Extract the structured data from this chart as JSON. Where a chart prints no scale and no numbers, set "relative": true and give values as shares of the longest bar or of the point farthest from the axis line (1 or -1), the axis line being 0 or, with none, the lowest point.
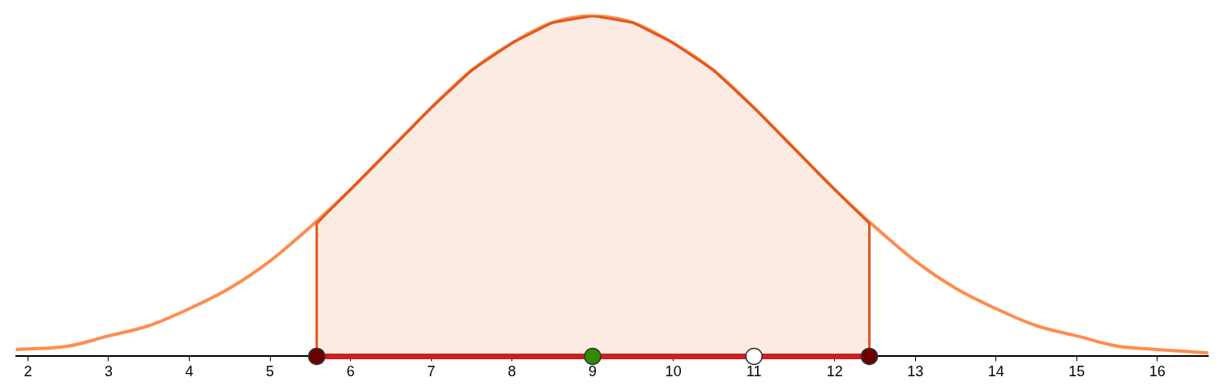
{
  "chart_data": {
    "type": "line",
    "relative": true,
    "xlim": [
      1.85,
      16.63
    ],
    "xticks": [
      2,
      3,
      4,
      5,
      6,
      7,
      8,
      9,
      10,
      11,
      12,
      13,
      14,
      15,
      16
    ],
    "grid": false,
    "legend": false,
    "series": [
      {
        "type": "line",
        "color": "#ff8c4f",
        "x": [
          1.85,
          2.5,
          3,
          3.5,
          4,
          4.5,
          5,
          5.5,
          6,
          6.5,
          7,
          7.5,
          8,
          8.5,
          9,
          9.5,
          10,
          10.5,
          11,
          11.5,
          12,
          12.5,
          13,
          13.5,
          14,
          14.5,
          15,
          15.5,
          16,
          16.63
        ],
        "values": [
          0.02,
          0.03,
          0.06,
          0.09,
          0.14,
          0.2,
          0.28,
          0.38,
          0.49,
          0.61,
          0.73,
          0.84,
          0.92,
          0.98,
          1,
          0.98,
          0.92,
          0.84,
          0.73,
          0.61,
          0.49,
          0.38,
          0.28,
          0.2,
          0.14,
          0.09,
          0.06,
          0.03,
          0.02,
          0.01
        ]
      },
      {
        "type": "area",
        "color": "#e2581c",
        "x": [
          5.58,
          5.58,
          6,
          6.5,
          7,
          7.5,
          8,
          8.5,
          9,
          9.5,
          10,
          10.5,
          11,
          11.5,
          12,
          12.43,
          12.43
        ],
        "values": [
          0,
          0.39,
          0.49,
          0.61,
          0.73,
          0.84,
          0.92,
          0.98,
          1,
          0.98,
          0.92,
          0.84,
          0.73,
          0.61,
          0.49,
          0.39,
          0
        ]
      },
      {
        "type": "line",
        "color": "#cc1f1f",
        "x": [
          5.58,
          10,
          12.43
        ],
        "values": [
          0,
          0,
          0
        ]
      },
      {
        "type": "scatter",
        "colors": [
          "#6b0000",
          "#2e8b00",
          "#ffffff",
          "#6b0000"
        ],
        "x": [
          5.58,
          9,
          11,
          12.43
        ],
        "values": [
          0,
          0,
          0,
          0
        ]
      }
    ]
  }
}
